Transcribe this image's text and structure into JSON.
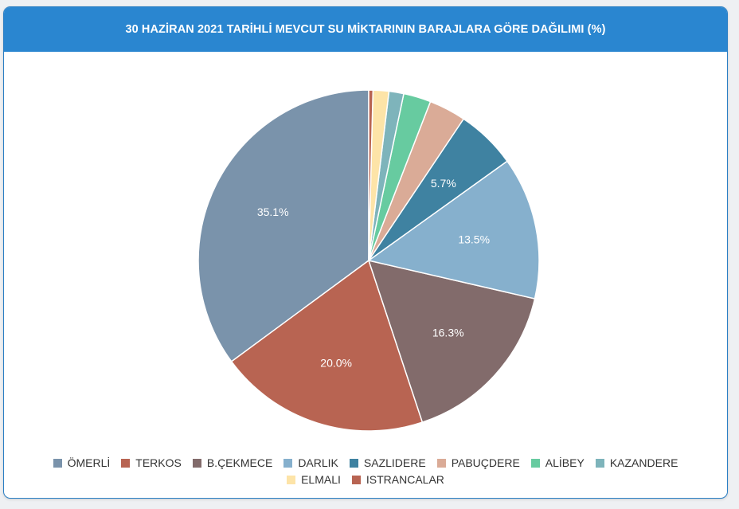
{
  "chart_data": {
    "type": "pie",
    "title": "30 HAZİRAN 2021 TARİHLİ MEVCUT SU MİKTARININ BARAJLARA GÖRE DAĞILIMI (%)",
    "categories": [
      "ÖMERLİ",
      "TERKOS",
      "B.ÇEKMECE",
      "DARLIK",
      "SAZLIDERE",
      "PABUÇDERE",
      "ALİBEY",
      "KAZANDERE",
      "ELMALI",
      "ISTRANCALAR"
    ],
    "values": [
      35.1,
      20.0,
      16.3,
      13.5,
      5.7,
      3.5,
      2.6,
      1.4,
      1.5,
      0.4
    ],
    "data_labels": [
      "35.1%",
      "20.0%",
      "16.3%",
      "13.5%",
      "5.7%",
      "",
      "",
      "",
      "",
      ""
    ],
    "colors": [
      "#7a93ab",
      "#b86452",
      "#826b6b",
      "#86b0cd",
      "#3f82a1",
      "#daab97",
      "#67cba0",
      "#7eb4bb",
      "#fde4a8",
      "#b86452"
    ],
    "legend_position": "bottom"
  }
}
